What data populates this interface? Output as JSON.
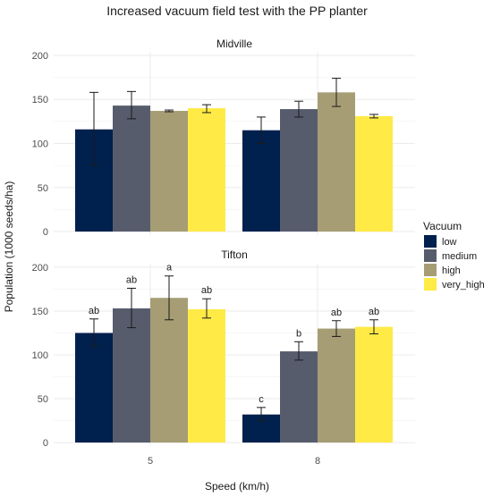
{
  "chart_data": {
    "type": "bar",
    "title": "Increased vacuum field test with the PP planter",
    "xlabel": "Speed (km/h)",
    "ylabel": "Population (1000 seeds/ha)",
    "categories": [
      "5",
      "8"
    ],
    "ylim": [
      0,
      200
    ],
    "yticks": [
      0,
      50,
      100,
      150,
      200
    ],
    "grid": true,
    "legend": {
      "title": "Vacuum",
      "position": "right",
      "entries": [
        "low",
        "medium",
        "high",
        "very_high"
      ]
    },
    "colors": {
      "low": "#00204d",
      "medium": "#575c6d",
      "high": "#a69d75",
      "very_high": "#ffea46"
    },
    "facets": [
      {
        "label": "Midville",
        "series": [
          {
            "name": "low",
            "values": [
              116,
              115
            ],
            "err_low": [
              75,
              100
            ],
            "err_high": [
              158,
              130
            ],
            "labels": [
              "",
              ""
            ]
          },
          {
            "name": "medium",
            "values": [
              143,
              139
            ],
            "err_low": [
              128,
              130
            ],
            "err_high": [
              159,
              148
            ],
            "labels": [
              "",
              ""
            ]
          },
          {
            "name": "high",
            "values": [
              137,
              158
            ],
            "err_low": [
              136,
              142
            ],
            "err_high": [
              138,
              174
            ],
            "labels": [
              "",
              ""
            ]
          },
          {
            "name": "very_high",
            "values": [
              140,
              131
            ],
            "err_low": [
              135,
              129
            ],
            "err_high": [
              144,
              133
            ],
            "labels": [
              "",
              ""
            ]
          }
        ]
      },
      {
        "label": "Tifton",
        "series": [
          {
            "name": "low",
            "values": [
              125,
              32
            ],
            "err_low": [
              110,
              25
            ],
            "err_high": [
              141,
              40
            ],
            "labels": [
              "ab",
              "c"
            ]
          },
          {
            "name": "medium",
            "values": [
              153,
              104
            ],
            "err_low": [
              131,
              94
            ],
            "err_high": [
              176,
              115
            ],
            "labels": [
              "ab",
              "b"
            ]
          },
          {
            "name": "high",
            "values": [
              165,
              130
            ],
            "err_low": [
              140,
              121
            ],
            "err_high": [
              190,
              139
            ],
            "labels": [
              "a",
              "ab"
            ]
          },
          {
            "name": "very_high",
            "values": [
              152,
              132
            ],
            "err_low": [
              142,
              124
            ],
            "err_high": [
              164,
              140
            ],
            "labels": [
              "ab",
              "ab"
            ]
          }
        ]
      }
    ]
  }
}
